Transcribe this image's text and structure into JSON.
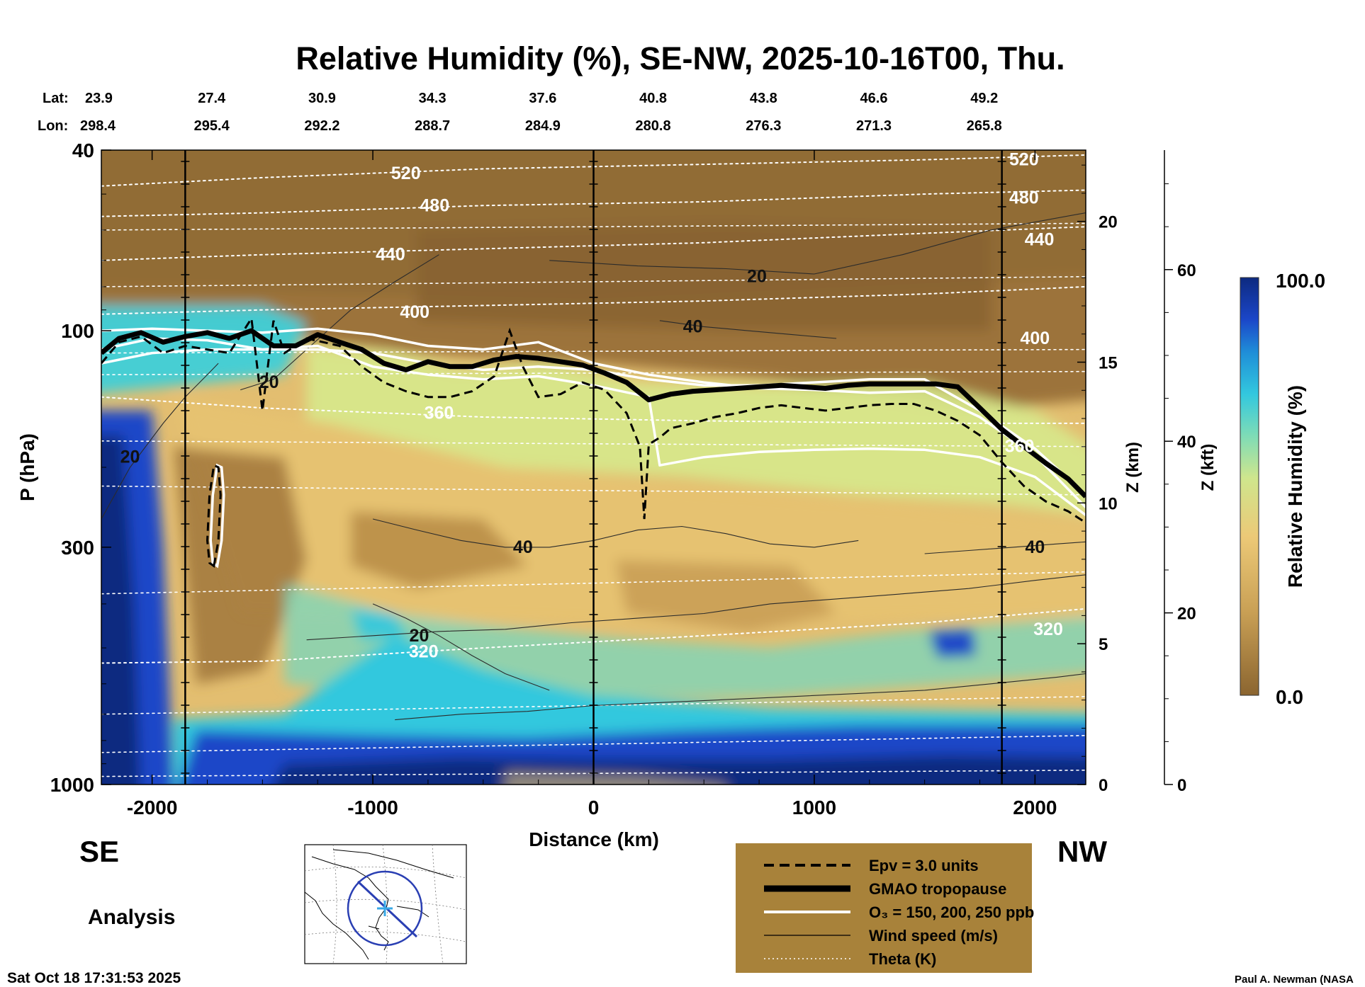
{
  "chart_data": {
    "type": "heatmap",
    "title": "Relative Humidity (%), SE-NW, 2025-10-16T00, Thu.",
    "xlabel": "Distance (km)",
    "ylabel": "P (hPa)",
    "z_label": "Z (km)",
    "z_kft_label": "Z (kft)",
    "colorbar_label": "Relative Humidity (%)",
    "colorbar_max_label": "100.0",
    "colorbar_min_label": "0.0",
    "xlim": [
      -2230,
      2230
    ],
    "ylim": [
      1000,
      40
    ],
    "x_ticks": [
      -2000,
      -1000,
      0,
      1000,
      2000
    ],
    "x_tick_labels": [
      "-2000",
      "-1000",
      "0",
      "1000",
      "2000"
    ],
    "p_ticks": [
      40,
      100,
      300,
      1000
    ],
    "p_tick_labels": [
      "40",
      "100",
      "300",
      "1000"
    ],
    "z_km_ticks": [
      0,
      5,
      10,
      15,
      20
    ],
    "z_km_tick_labels": [
      "0",
      "5",
      "10",
      "15",
      "20"
    ],
    "z_kft_ticks": [
      0,
      20,
      40,
      60
    ],
    "z_kft_tick_labels": [
      "0",
      "20",
      "40",
      "60"
    ],
    "lat_label": "Lat:",
    "lon_label": "Lon:",
    "lat": [
      "23.9",
      "27.4",
      "30.9",
      "34.3",
      "37.6",
      "40.8",
      "43.8",
      "46.6",
      "49.2"
    ],
    "lon": [
      "298.4",
      "295.4",
      "292.2",
      "288.7",
      "284.9",
      "280.8",
      "276.3",
      "271.3",
      "265.8"
    ],
    "latlon_distances": [
      -2230,
      -1730,
      -1230,
      -730,
      -230,
      270,
      770,
      1270,
      1770
    ],
    "vertical_lines": [
      -1850,
      0,
      1850
    ],
    "direction_left": "SE",
    "direction_right": "NW",
    "analysis_label": "Analysis",
    "timestamp": "Sat Oct 18 17:31:53 2025",
    "credit": "Paul A. Newman (NASA",
    "legend": [
      {
        "label": "Epv = 3.0 units",
        "style": "dashed-black"
      },
      {
        "label": "GMAO tropopause",
        "style": "thick-black"
      },
      {
        "label": "O₃ = 150, 200, 250 ppb",
        "style": "white"
      },
      {
        "label": "Wind speed (m/s)",
        "style": "thin-black"
      },
      {
        "label": "Theta (K)",
        "style": "dotted-white"
      }
    ],
    "theta_levels": [
      {
        "value": 520,
        "label": "520",
        "x": [
          -2230,
          -1500,
          -500,
          500,
          1500,
          2230
        ],
        "p": [
          48,
          46,
          44,
          43,
          42,
          41
        ],
        "label_x": -850,
        "label_p": 45
      },
      {
        "value": 480,
        "label": "480",
        "x": [
          -2230,
          -1500,
          -500,
          500,
          1500,
          2230
        ],
        "p": [
          56,
          55,
          53,
          52,
          50,
          49
        ],
        "label_x": -720,
        "label_p": 53
      },
      {
        "value": 440,
        "label": "440",
        "x": [
          -2230,
          -1500,
          -500,
          500,
          1500,
          2230
        ],
        "p": [
          70,
          68,
          66,
          64,
          61,
          59
        ],
        "label_x": -920,
        "label_p": 68
      },
      {
        "value": 400,
        "label": "400",
        "x": [
          -2230,
          -1500,
          -500,
          500,
          1500,
          2230
        ],
        "p": [
          92,
          90,
          88,
          86,
          83,
          80
        ],
        "label_x": -810,
        "label_p": 91
      },
      {
        "value": 360,
        "label": "360",
        "x": [
          -2230,
          -1500,
          -500,
          500,
          1500,
          2230
        ],
        "p": [
          140,
          148,
          155,
          158,
          160,
          160
        ],
        "label_x": -700,
        "label_p": 152
      },
      {
        "value": 320,
        "label": "320",
        "x": [
          -2230,
          -1500,
          -500,
          500,
          1500,
          2230
        ],
        "p": [
          540,
          535,
          500,
          470,
          440,
          410
        ],
        "label_x": -770,
        "label_p": 510
      }
    ],
    "theta_extra_labels": [
      {
        "label": "520",
        "x": 1950,
        "p": 42
      },
      {
        "label": "480",
        "x": 1950,
        "p": 51
      },
      {
        "label": "440",
        "x": 2020,
        "p": 63
      },
      {
        "label": "400",
        "x": 2000,
        "p": 104
      },
      {
        "label": "360",
        "x": 1930,
        "p": 180
      },
      {
        "label": "320",
        "x": 2060,
        "p": 455
      }
    ],
    "tropopause": {
      "x": [
        -2230,
        -2150,
        -2050,
        -1950,
        -1850,
        -1750,
        -1650,
        -1550,
        -1450,
        -1350,
        -1250,
        -1150,
        -1050,
        -950,
        -850,
        -750,
        -650,
        -550,
        -450,
        -350,
        -250,
        -150,
        -50,
        50,
        150,
        250,
        350,
        450,
        550,
        650,
        750,
        850,
        950,
        1050,
        1150,
        1250,
        1350,
        1450,
        1550,
        1650,
        1750,
        1850,
        1950,
        2050,
        2150,
        2230
      ],
      "p": [
        112,
        104,
        101,
        106,
        103,
        101,
        104,
        100,
        108,
        108,
        102,
        106,
        110,
        118,
        122,
        117,
        120,
        120,
        116,
        114,
        115,
        117,
        119,
        124,
        130,
        142,
        138,
        136,
        135,
        134,
        133,
        132,
        133,
        134,
        132,
        131,
        131,
        131,
        131,
        133,
        148,
        165,
        180,
        196,
        212,
        232
      ]
    },
    "ozone_contours": [
      {
        "x": [
          -2230,
          -2000,
          -1750,
          -1500,
          -1250,
          -1000,
          -750,
          -500,
          -250,
          0,
          250,
          500,
          750,
          1000,
          1250,
          1500,
          1750,
          2000,
          2230
        ],
        "p": [
          118,
          112,
          110,
          110,
          110,
          112,
          118,
          122,
          120,
          122,
          128,
          132,
          132,
          130,
          128,
          128,
          150,
          182,
          230
        ]
      },
      {
        "x": [
          -2230,
          -2000,
          -1750,
          -1500,
          -1250,
          -1000,
          -750,
          -500,
          -250,
          0,
          250,
          500,
          750,
          1000,
          1250,
          1500,
          1750,
          2000,
          2230
        ],
        "p": [
          100,
          99,
          100,
          101,
          99,
          102,
          108,
          110,
          106,
          118,
          125,
          130,
          134,
          135,
          137,
          136,
          155,
          188,
          245
        ]
      },
      {
        "x": [
          -2230,
          -2000,
          -1750,
          -1500,
          -1250,
          -1000,
          -750,
          -500,
          -250,
          0,
          250,
          300,
          500,
          750,
          1000,
          1250,
          1500,
          1750,
          2000,
          2230
        ],
        "p": [
          110,
          104,
          105,
          110,
          108,
          120,
          125,
          128,
          126,
          132,
          140,
          198,
          190,
          185,
          183,
          182,
          183,
          190,
          210,
          255
        ]
      }
    ],
    "epv_contour": {
      "x": [
        -2230,
        -2150,
        -2050,
        -1950,
        -1850,
        -1750,
        -1650,
        -1550,
        -1500,
        -1450,
        -1400,
        -1300,
        -1150,
        -1050,
        -950,
        -850,
        -750,
        -650,
        -550,
        -450,
        -380,
        -320,
        -250,
        -150,
        -50,
        50,
        150,
        210,
        230,
        250,
        300,
        350,
        450,
        550,
        650,
        750,
        850,
        950,
        1050,
        1150,
        1250,
        1350,
        1450,
        1550,
        1650,
        1750,
        1850,
        1950,
        2050,
        2150,
        2230
      ],
      "p": [
        118,
        106,
        103,
        112,
        108,
        110,
        112,
        94,
        150,
        95,
        112,
        104,
        108,
        120,
        130,
        136,
        140,
        140,
        136,
        126,
        100,
        120,
        140,
        138,
        130,
        135,
        152,
        180,
        260,
        178,
        172,
        164,
        160,
        155,
        152,
        148,
        146,
        148,
        150,
        148,
        146,
        145,
        145,
        150,
        158,
        170,
        195,
        220,
        238,
        250,
        265
      ]
    },
    "epv_loop": {
      "x": [
        -1720,
        -1700,
        -1690,
        -1700,
        -1720,
        -1740,
        -1750,
        -1740
      ],
      "p": [
        330,
        290,
        230,
        200,
        198,
        230,
        290,
        325
      ]
    },
    "wind_contours": [
      {
        "label": "20",
        "x": [
          -2230,
          -2100,
          -1950,
          -1850,
          -1750,
          -1700
        ],
        "p": [
          260,
          200,
          160,
          140,
          125,
          118
        ],
        "label_x": -2100,
        "label_p": 190
      },
      {
        "label": "20",
        "x": [
          -1600,
          -1450,
          -1300,
          -1100,
          -900,
          -700
        ],
        "p": [
          135,
          128,
          110,
          90,
          78,
          68
        ],
        "label_x": -1470,
        "label_p": 130
      },
      {
        "label": "20",
        "x": [
          -200,
          200,
          600,
          1000,
          1400,
          1800,
          2230
        ],
        "p": [
          70,
          72,
          73,
          75,
          68,
          60,
          55
        ],
        "label_x": 740,
        "label_p": 76
      },
      {
        "label": "40",
        "x": [
          300,
          500,
          700,
          900,
          1100
        ],
        "p": [
          95,
          98,
          100,
          102,
          104
        ],
        "label_x": 450,
        "label_p": 98
      },
      {
        "label": "40",
        "x": [
          -1000,
          -800,
          -600,
          -400,
          -200,
          0,
          200,
          400,
          600,
          800,
          1000,
          1200
        ],
        "p": [
          260,
          275,
          290,
          300,
          300,
          290,
          275,
          270,
          280,
          295,
          300,
          290
        ],
        "label_x": -320,
        "label_p": 300
      },
      {
        "label": "40",
        "x": [
          1500,
          1700,
          1900,
          2100,
          2230
        ],
        "p": [
          310,
          305,
          300,
          295,
          292
        ],
        "label_x": 2000,
        "label_p": 300
      },
      {
        "label": "20",
        "x": [
          -1000,
          -850,
          -700,
          -550,
          -400,
          -200
        ],
        "p": [
          400,
          430,
          470,
          520,
          570,
          620
        ],
        "label_x": -790,
        "label_p": 470
      },
      {
        "label": "",
        "x": [
          -1300,
          -1000,
          -700,
          -400,
          -100,
          200,
          500,
          800,
          1100,
          1400,
          1700,
          2000,
          2230
        ],
        "p": [
          480,
          470,
          460,
          455,
          440,
          430,
          420,
          400,
          390,
          380,
          370,
          355,
          345
        ]
      },
      {
        "label": "",
        "x": [
          -900,
          -600,
          -300,
          0,
          300,
          600,
          900,
          1200,
          1500,
          1800,
          2100,
          2230
        ],
        "p": [
          720,
          700,
          690,
          670,
          660,
          650,
          640,
          630,
          620,
          600,
          580,
          570
        ]
      }
    ],
    "map_inset": {
      "track_color": "#2a3fb3",
      "marker_color": "#39a8e6"
    },
    "colors": {
      "rh_dry": "#8b6530",
      "rh_mid": "#e8c46f",
      "rh_green": "#b7e68a",
      "rh_cyan": "#33c8de",
      "rh_blue": "#1b46c8",
      "rh_wet": "#0d2a80",
      "legend_bg": "#a8823a"
    }
  }
}
